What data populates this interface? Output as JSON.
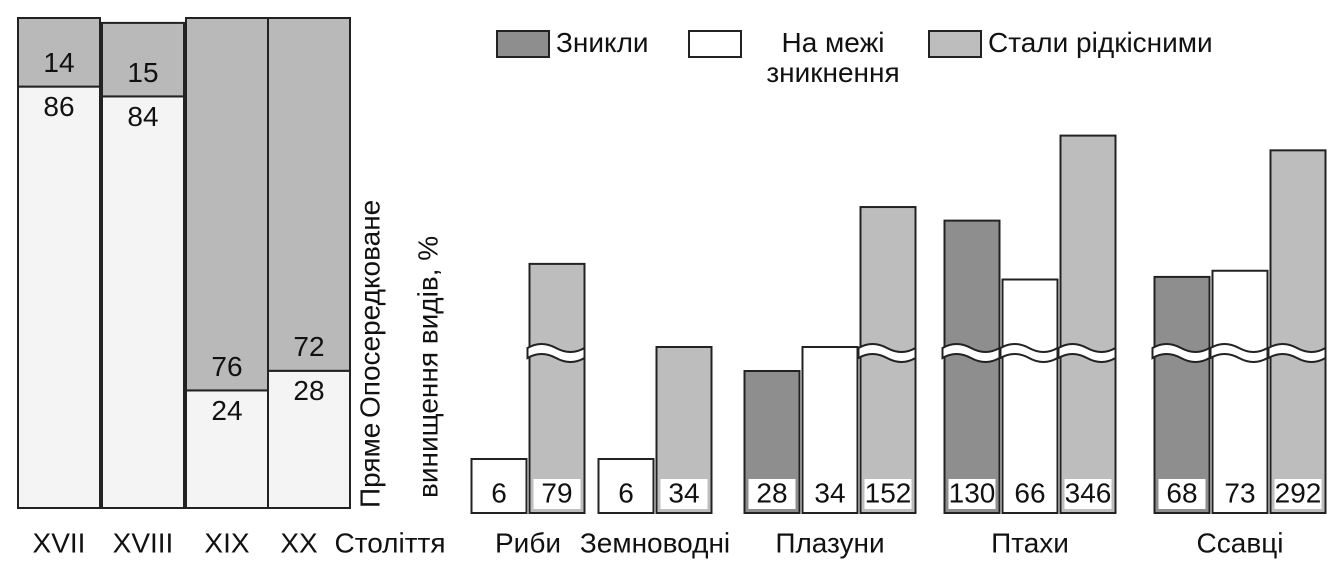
{
  "chart_data": [
    {
      "type": "stacked_bar",
      "categories": [
        "XVII",
        "XVIII",
        "XIX",
        "XX"
      ],
      "xlabel": "Століття",
      "ylabel": "винищення видів, %",
      "series": [
        {
          "name": "Пряме",
          "color": "#f4f4f4",
          "values": [
            86,
            84,
            24,
            28
          ]
        },
        {
          "name": "Опосередковане",
          "color": "#b9b9b9",
          "values": [
            14,
            15,
            76,
            72
          ]
        }
      ],
      "ylim": [
        0,
        100
      ]
    },
    {
      "type": "grouped_bar",
      "categories": [
        "Риби",
        "Земноводні",
        "Плазуни",
        "Птахи",
        "Ссавці"
      ],
      "series": [
        {
          "name": "Зникли",
          "color": "#8e8e8e",
          "values": [
            null,
            null,
            28,
            130,
            68
          ]
        },
        {
          "name": "На межі зникнення",
          "color": "#ffffff",
          "values": [
            6,
            6,
            34,
            66,
            73
          ]
        },
        {
          "name": "Стали рідкісними",
          "color": "#bdbdbd",
          "values": [
            79,
            34,
            152,
            346,
            292
          ]
        }
      ],
      "broken_axis": true
    }
  ]
}
